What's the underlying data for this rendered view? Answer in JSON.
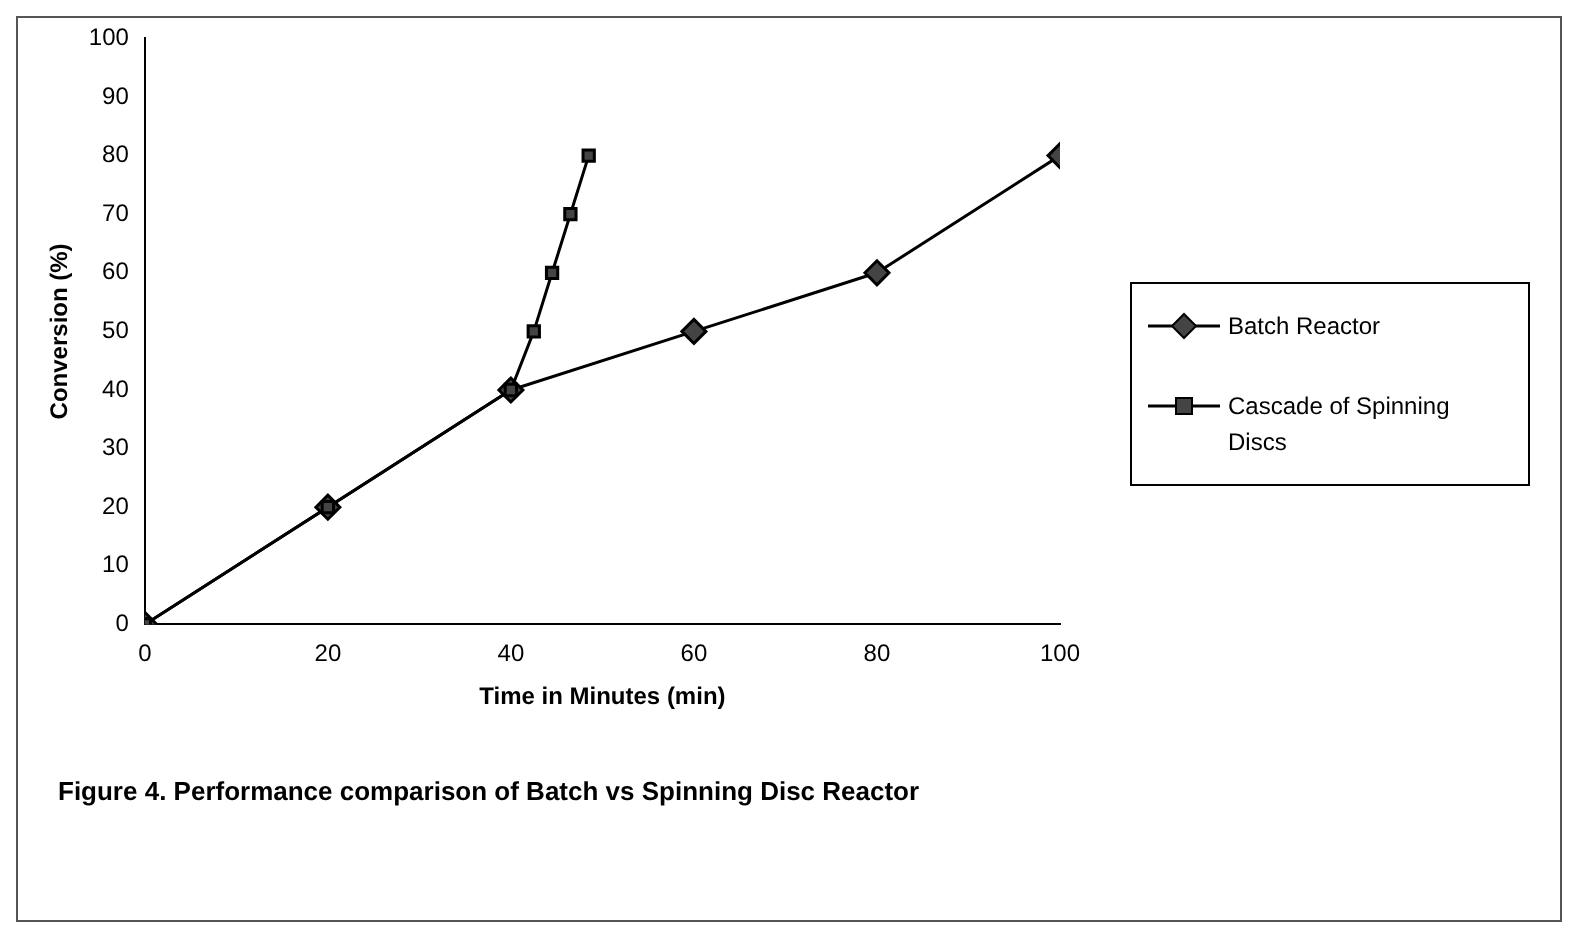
{
  "chart_data": {
    "type": "line",
    "xlabel": "Time in Minutes (min)",
    "ylabel": "Conversion (%)",
    "series": [
      {
        "name": "Batch Reactor",
        "color": "#000000",
        "x": [
          0,
          20,
          40,
          60,
          80,
          100
        ],
        "values": [
          0,
          20,
          40,
          50,
          60,
          80
        ],
        "marker": "diamond"
      },
      {
        "name": "Cascade of Spinning Discs",
        "color": "#000000",
        "x": [
          0,
          20,
          40,
          42.5,
          44.5,
          46.5,
          48.5
        ],
        "values": [
          0,
          20,
          40,
          50,
          60,
          70,
          80
        ],
        "marker": "square"
      }
    ],
    "xlim": [
      0,
      100
    ],
    "xticks": [
      0,
      20,
      40,
      60,
      80,
      100
    ],
    "ylim": [
      0,
      100
    ],
    "yticks": [
      0,
      10,
      20,
      30,
      40,
      50,
      60,
      70,
      80,
      90,
      100
    ],
    "grid": false,
    "legend": "right",
    "line_style": "solid",
    "annotations": [
      "Figure 4. Performance comparison of Batch vs Spinning Disc Reactor"
    ]
  }
}
